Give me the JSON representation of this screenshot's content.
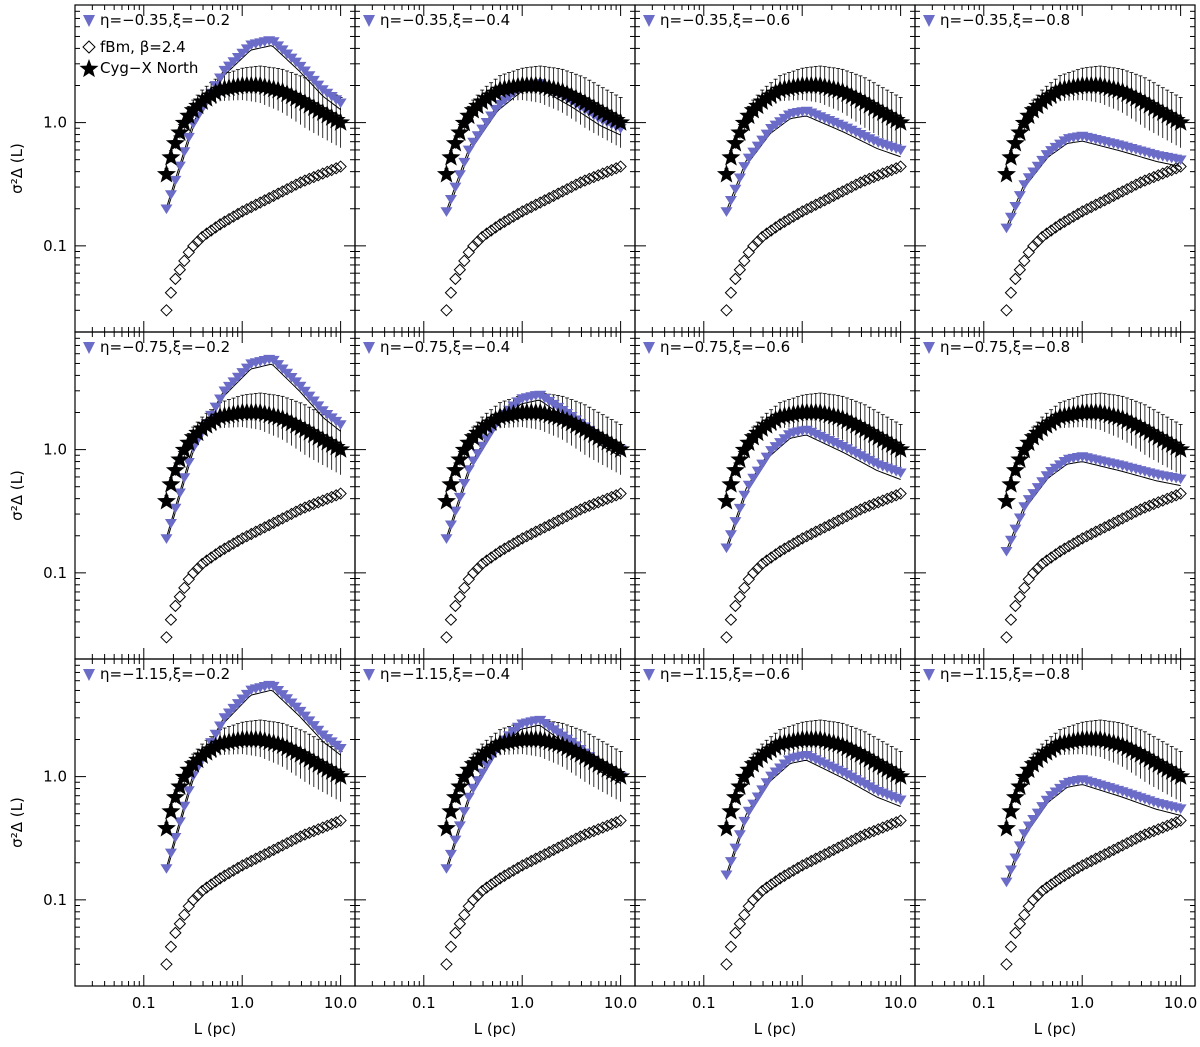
{
  "chart_data": {
    "type": "scatter",
    "layout": "3x4 panel grid",
    "xlabel": "L (pc)",
    "ylabel": "σ²Δ (L)",
    "xscale": "log",
    "yscale": "log",
    "xlim": [
      0.02,
      14
    ],
    "ylim": [
      0.02,
      9
    ],
    "xticks": [
      0.1,
      1.0,
      10.0
    ],
    "xtick_labels": [
      "0.1",
      "1.0",
      "10.0"
    ],
    "yticks": [
      0.1,
      1.0
    ],
    "ytick_labels": [
      "0.1",
      "1.0"
    ],
    "colors": {
      "model": "#6b6bc8",
      "black": "#000000"
    },
    "legend": {
      "placement": "top-left of first panel",
      "entries": [
        {
          "symbol": "triangle-down",
          "label": "η=−0.35,ξ=−0.2"
        },
        {
          "symbol": "diamond",
          "label": "fBm, β=2.4"
        },
        {
          "symbol": "star",
          "label": "Cyg−X North"
        }
      ]
    },
    "panel_labels": [
      [
        "η=−0.35,ξ=−0.2",
        "η=−0.35,ξ=−0.4",
        "η=−0.35,ξ=−0.6",
        "η=−0.35,ξ=−0.8"
      ],
      [
        "η=−0.75,ξ=−0.2",
        "η=−0.75,ξ=−0.4",
        "η=−0.75,ξ=−0.6",
        "η=−0.75,ξ=−0.8"
      ],
      [
        "η=−1.15,ξ=−0.2",
        "η=−1.15,ξ=−0.4",
        "η=−1.15,ξ=−0.6",
        "η=−1.15,ξ=−0.8"
      ]
    ],
    "data_series": {
      "x_range": [
        0.17,
        10.0
      ],
      "n_points": 40,
      "cyg_x_north": {
        "description": "black stars with error bars, common to all panels",
        "anchor_x": [
          0.17,
          0.2,
          0.25,
          0.3,
          0.4,
          0.6,
          1.0,
          1.5,
          2.5,
          4.0,
          6.0,
          10.0
        ],
        "anchor_y": [
          0.38,
          0.62,
          0.95,
          1.2,
          1.5,
          1.85,
          2.0,
          2.0,
          1.8,
          1.5,
          1.25,
          1.0
        ],
        "err_frac": 0.6
      },
      "fbm": {
        "description": "open diamonds, common to all panels",
        "anchor_x": [
          0.17,
          0.2,
          0.25,
          0.3,
          0.4,
          0.6,
          1.0,
          2.0,
          4.0,
          10.0
        ],
        "anchor_y": [
          0.03,
          0.05,
          0.072,
          0.095,
          0.12,
          0.15,
          0.19,
          0.25,
          0.33,
          0.44
        ]
      },
      "model": {
        "description": "blue downward triangles with black model curves; peak (x,y), start value at x=0.17 and end value at x=10",
        "panels": [
          [
            {
              "start": 0.2,
              "peak_x": 2.0,
              "peak_y": 4.7,
              "end": 1.45
            },
            {
              "start": 0.19,
              "peak_x": 1.5,
              "peak_y": 2.1,
              "end": 0.9
            },
            {
              "start": 0.19,
              "peak_x": 1.1,
              "peak_y": 1.25,
              "end": 0.6
            },
            {
              "start": 0.14,
              "peak_x": 1.0,
              "peak_y": 0.78,
              "end": 0.5
            }
          ],
          [
            {
              "start": 0.19,
              "peak_x": 2.0,
              "peak_y": 5.5,
              "end": 1.6
            },
            {
              "start": 0.19,
              "peak_x": 1.5,
              "peak_y": 2.8,
              "end": 1.0
            },
            {
              "start": 0.16,
              "peak_x": 1.1,
              "peak_y": 1.45,
              "end": 0.65
            },
            {
              "start": 0.15,
              "peak_x": 1.0,
              "peak_y": 0.88,
              "end": 0.58
            }
          ],
          [
            {
              "start": 0.18,
              "peak_x": 2.0,
              "peak_y": 5.6,
              "end": 1.7
            },
            {
              "start": 0.18,
              "peak_x": 1.5,
              "peak_y": 2.9,
              "end": 1.0
            },
            {
              "start": 0.16,
              "peak_x": 1.1,
              "peak_y": 1.5,
              "end": 0.65
            },
            {
              "start": 0.14,
              "peak_x": 1.0,
              "peak_y": 0.95,
              "end": 0.55
            }
          ]
        ]
      }
    }
  }
}
